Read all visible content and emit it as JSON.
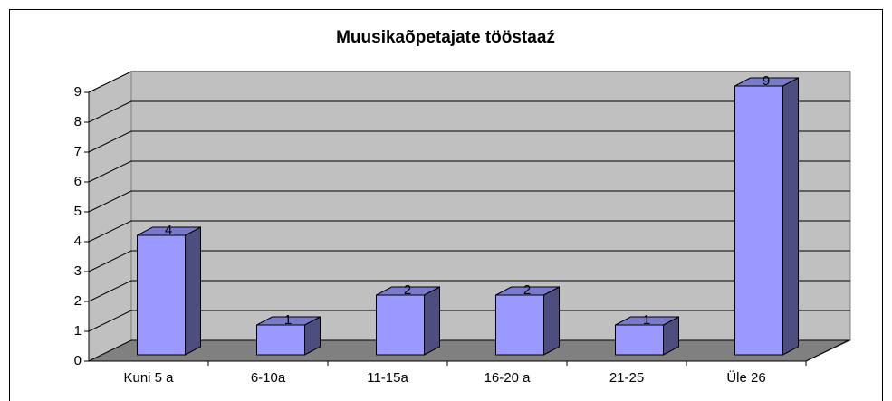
{
  "chart_data": {
    "type": "bar",
    "title": "Muusikaõpetajate tööstaaź",
    "categories": [
      "Kuni 5 a",
      "6-10a",
      "11-15a",
      "16-20 a",
      "21-25",
      "Üle 26"
    ],
    "values": [
      4,
      1,
      2,
      2,
      1,
      9
    ],
    "color": "#9999ff",
    "ylim": [
      0,
      9
    ],
    "yticks": [
      0,
      1,
      2,
      3,
      4,
      5,
      6,
      7,
      8,
      9
    ],
    "grid": true
  }
}
